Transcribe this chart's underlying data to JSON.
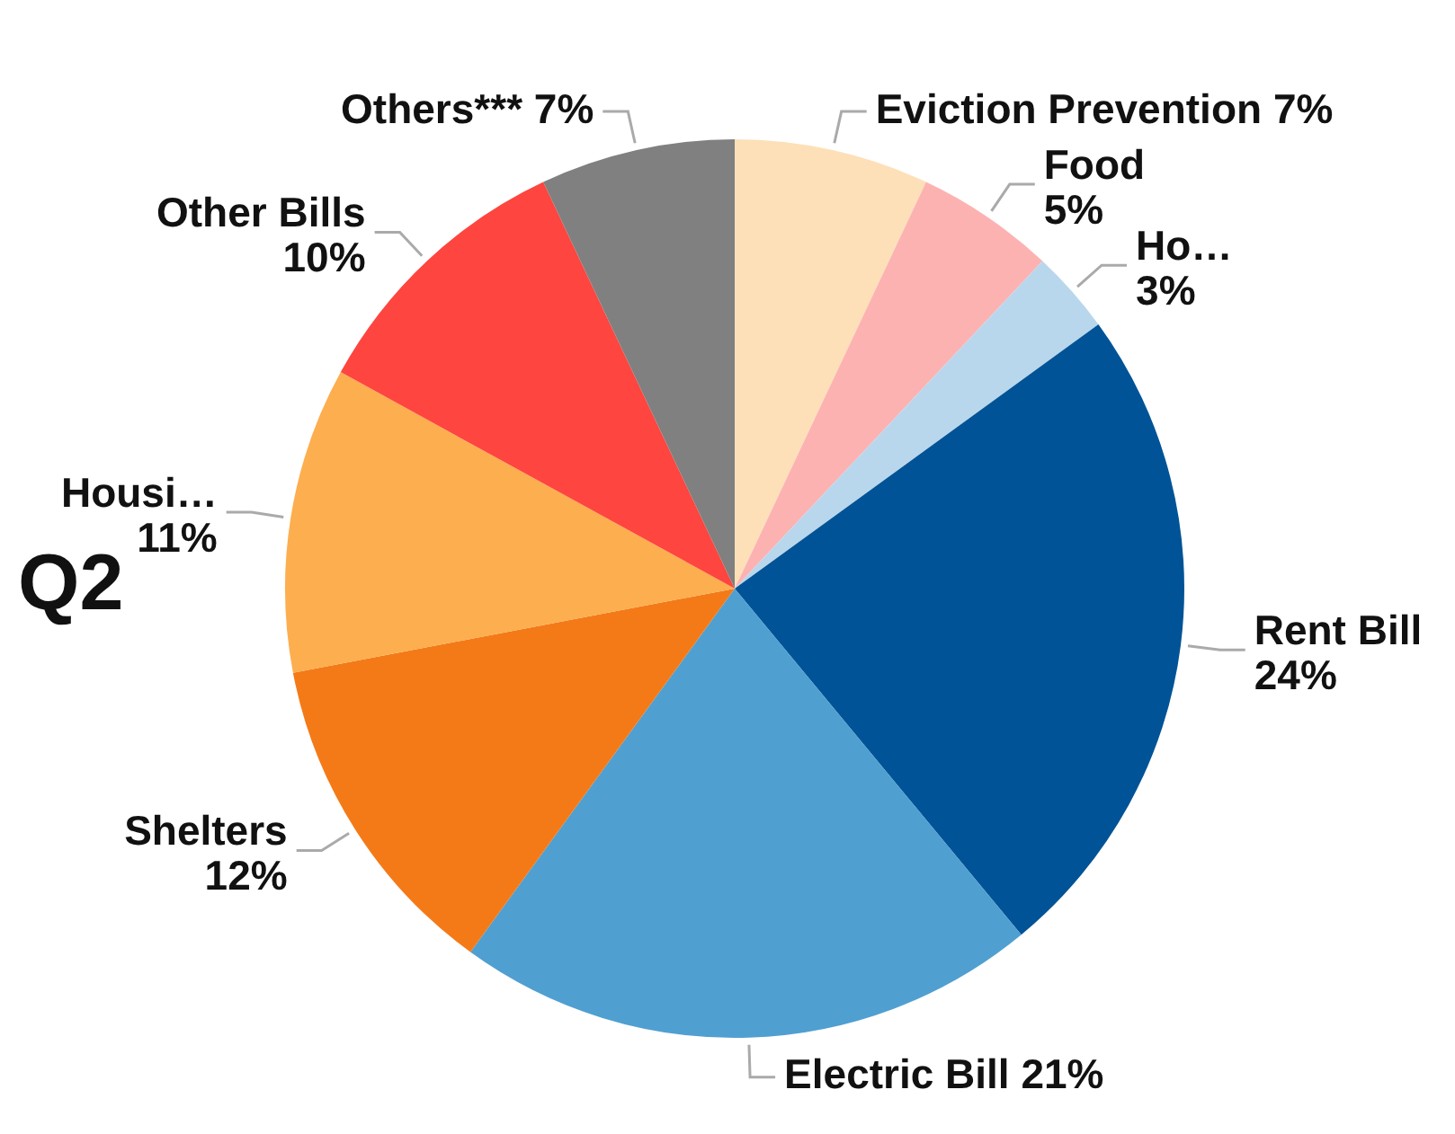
{
  "chart_data": {
    "type": "pie",
    "title": "Q2",
    "categories": [
      "Eviction Prevention",
      "Food",
      "Ho…",
      "Rent Bill",
      "Electric Bill",
      "Shelters",
      "Housi…",
      "Other Bills",
      "Others***"
    ],
    "values": [
      7,
      5,
      3,
      24,
      21,
      12,
      11,
      10,
      7
    ],
    "value_labels": [
      "7%",
      "5%",
      "3%",
      "24%",
      "21%",
      "12%",
      "11%",
      "10%",
      "7%"
    ],
    "colors": [
      "#fde0b8",
      "#fdb2b2",
      "#b9d7ec",
      "#005396",
      "#509fd1",
      "#f47a18",
      "#fdae4f",
      "#fe453f",
      "#808080"
    ],
    "legend": false
  }
}
